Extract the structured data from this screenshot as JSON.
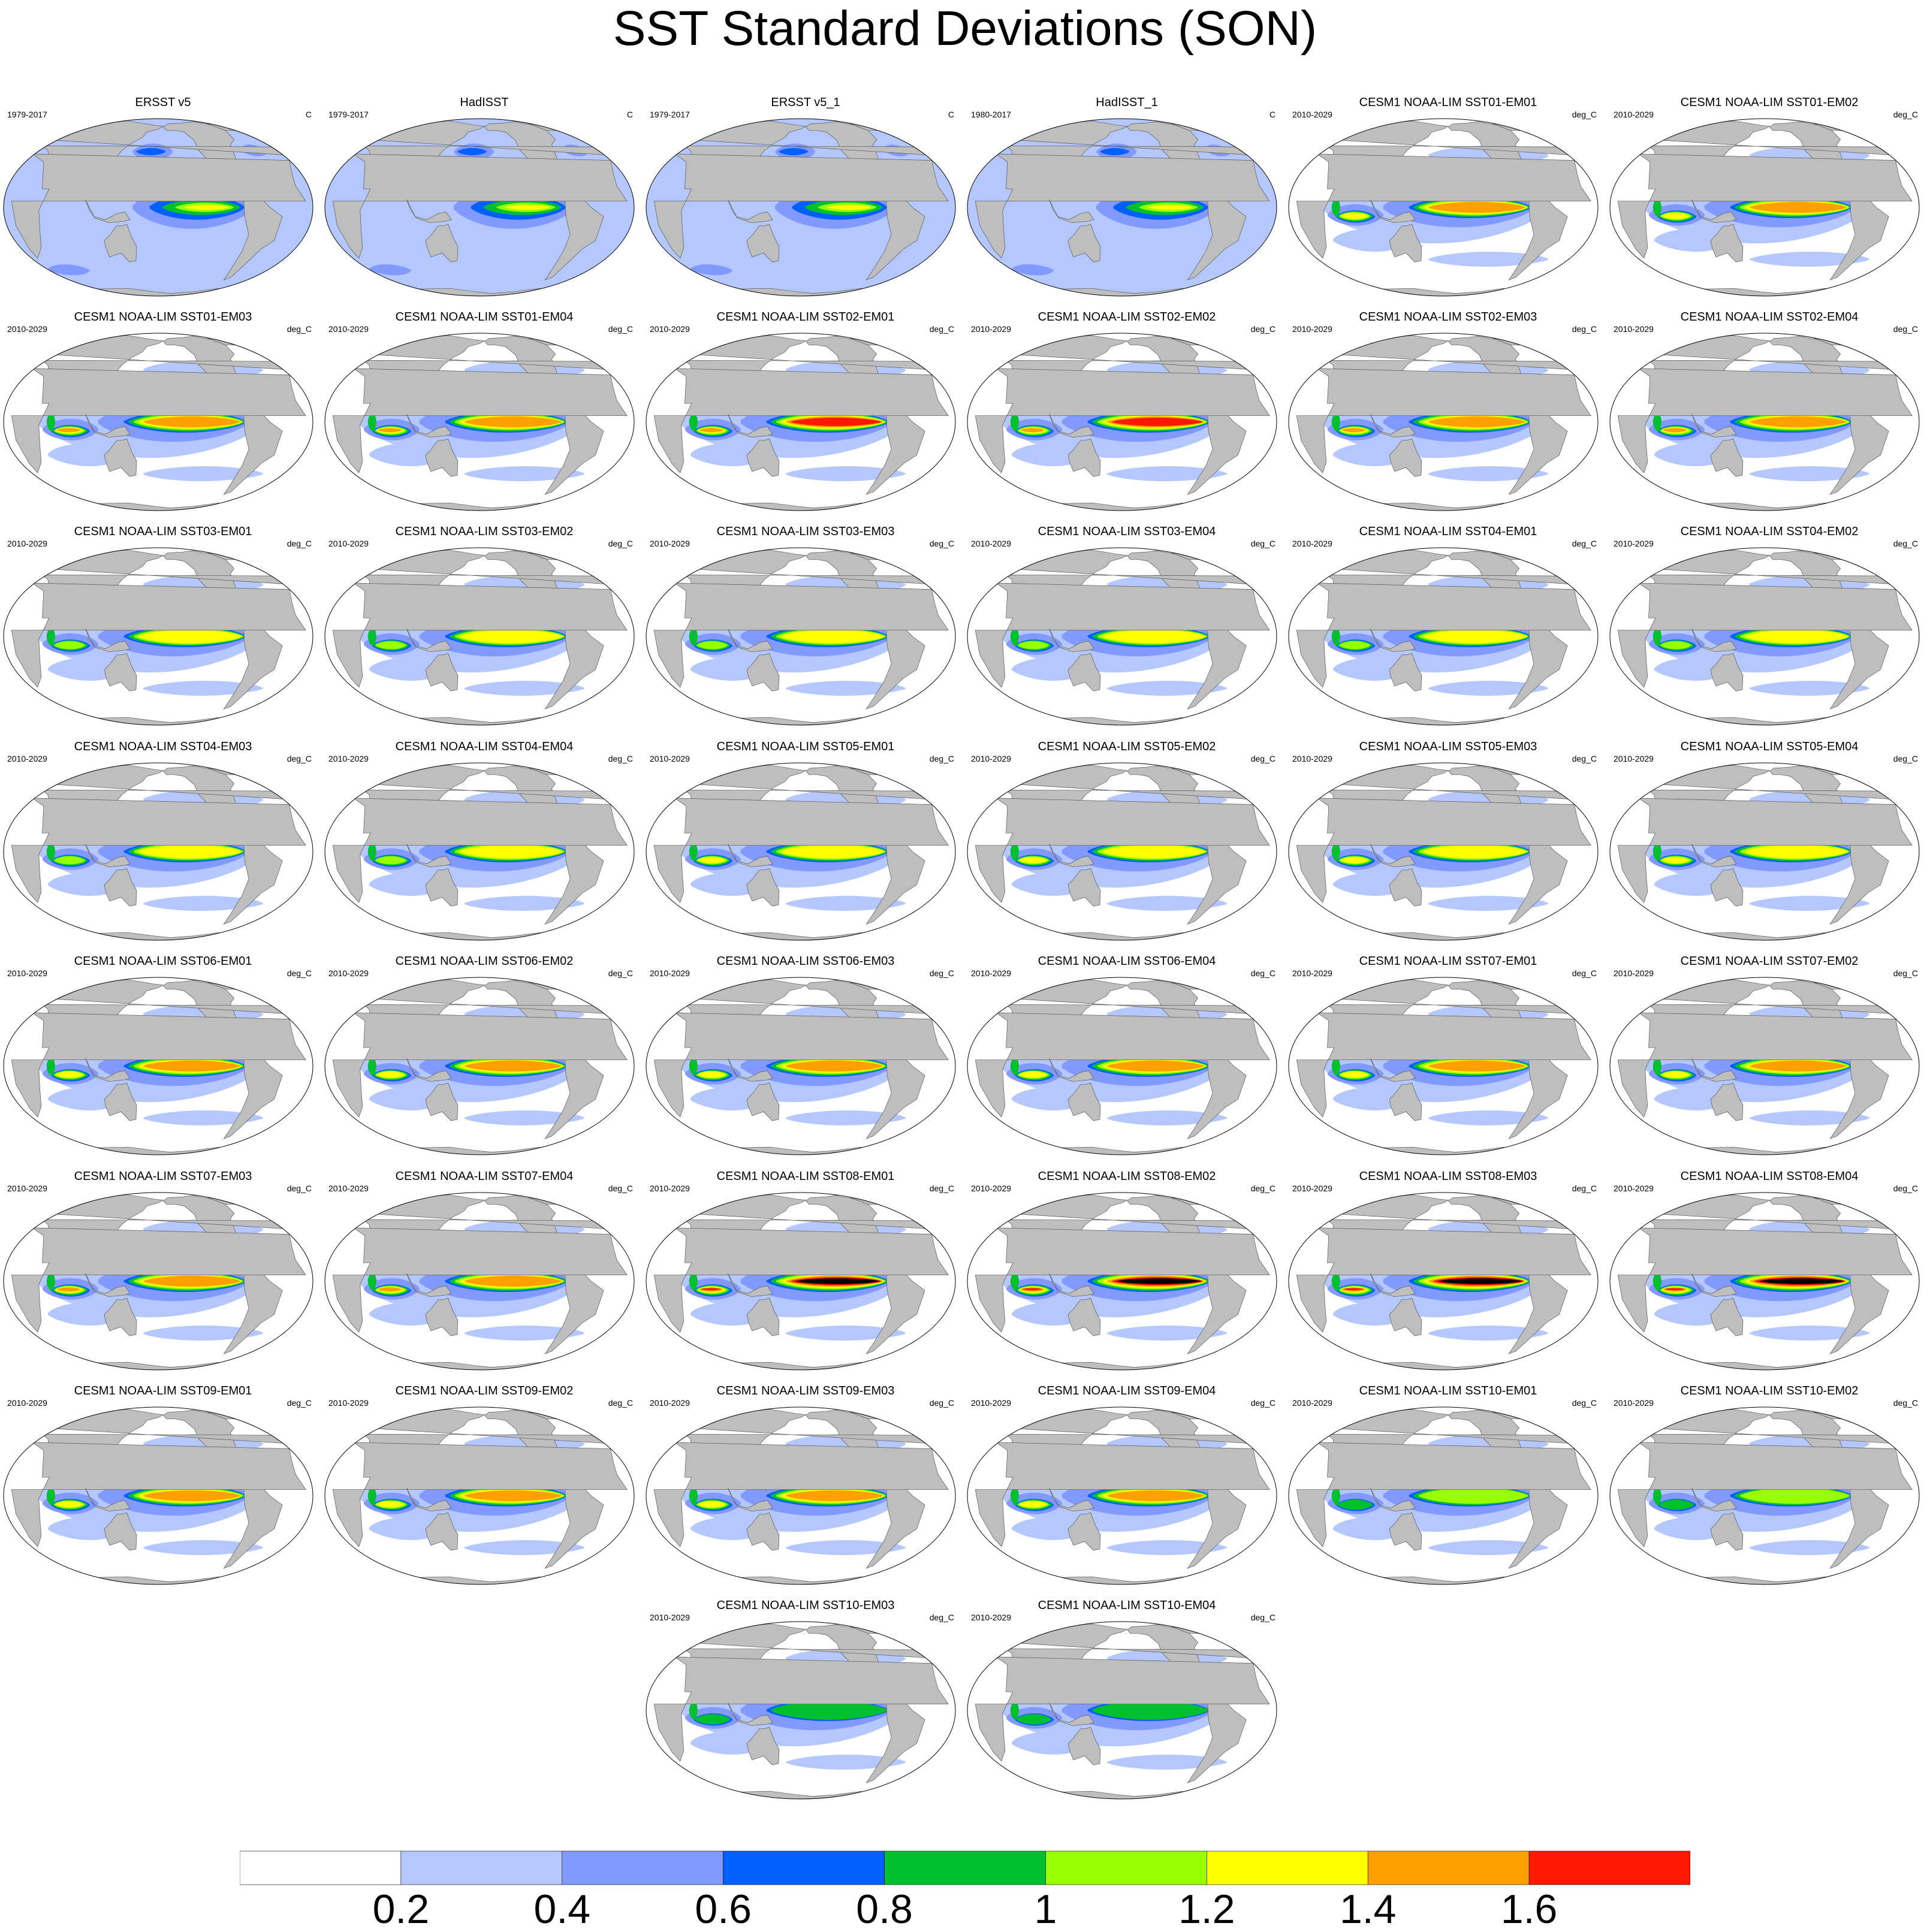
{
  "title": "SST Standard Deviations (SON)",
  "panels": [
    {
      "title": "ERSST v5",
      "period": "1979-2017",
      "units": "C",
      "kind": "obs",
      "intensity": 0.55
    },
    {
      "title": "HadISST",
      "period": "1979-2017",
      "units": "C",
      "kind": "obs",
      "intensity": 0.55
    },
    {
      "title": "ERSST v5_1",
      "period": "1979-2017",
      "units": "C",
      "kind": "obs",
      "intensity": 0.55
    },
    {
      "title": "HadISST_1",
      "period": "1980-2017",
      "units": "C",
      "kind": "obs",
      "intensity": 0.5
    },
    {
      "title": "CESM1 NOAA-LIM SST01-EM01",
      "period": "2010-2029",
      "units": "deg_C",
      "kind": "model",
      "intensity": 0.7
    },
    {
      "title": "CESM1 NOAA-LIM SST01-EM02",
      "period": "2010-2029",
      "units": "deg_C",
      "kind": "model",
      "intensity": 0.7
    },
    {
      "title": "CESM1 NOAA-LIM SST01-EM03",
      "period": "2010-2029",
      "units": "deg_C",
      "kind": "model",
      "intensity": 0.75
    },
    {
      "title": "CESM1 NOAA-LIM SST01-EM04",
      "period": "2010-2029",
      "units": "deg_C",
      "kind": "model",
      "intensity": 0.75
    },
    {
      "title": "CESM1 NOAA-LIM SST02-EM01",
      "period": "2010-2029",
      "units": "deg_C",
      "kind": "model",
      "intensity": 0.8
    },
    {
      "title": "CESM1 NOAA-LIM SST02-EM02",
      "period": "2010-2029",
      "units": "deg_C",
      "kind": "model",
      "intensity": 0.8
    },
    {
      "title": "CESM1 NOAA-LIM SST02-EM03",
      "period": "2010-2029",
      "units": "deg_C",
      "kind": "model",
      "intensity": 0.75
    },
    {
      "title": "CESM1 NOAA-LIM SST02-EM04",
      "period": "2010-2029",
      "units": "deg_C",
      "kind": "model",
      "intensity": 0.75
    },
    {
      "title": "CESM1 NOAA-LIM SST03-EM01",
      "period": "2010-2029",
      "units": "deg_C",
      "kind": "model",
      "intensity": 0.55
    },
    {
      "title": "CESM1 NOAA-LIM SST03-EM02",
      "period": "2010-2029",
      "units": "deg_C",
      "kind": "model",
      "intensity": 0.55
    },
    {
      "title": "CESM1 NOAA-LIM SST03-EM03",
      "period": "2010-2029",
      "units": "deg_C",
      "kind": "model",
      "intensity": 0.55
    },
    {
      "title": "CESM1 NOAA-LIM SST03-EM04",
      "period": "2010-2029",
      "units": "deg_C",
      "kind": "model",
      "intensity": 0.55
    },
    {
      "title": "CESM1 NOAA-LIM SST04-EM01",
      "period": "2010-2029",
      "units": "deg_C",
      "kind": "model",
      "intensity": 0.55
    },
    {
      "title": "CESM1 NOAA-LIM SST04-EM02",
      "period": "2010-2029",
      "units": "deg_C",
      "kind": "model",
      "intensity": 0.55
    },
    {
      "title": "CESM1 NOAA-LIM SST04-EM03",
      "period": "2010-2029",
      "units": "deg_C",
      "kind": "model",
      "intensity": 0.55
    },
    {
      "title": "CESM1 NOAA-LIM SST04-EM04",
      "period": "2010-2029",
      "units": "deg_C",
      "kind": "model",
      "intensity": 0.55
    },
    {
      "title": "CESM1 NOAA-LIM SST05-EM01",
      "period": "2010-2029",
      "units": "deg_C",
      "kind": "model",
      "intensity": 0.6
    },
    {
      "title": "CESM1 NOAA-LIM SST05-EM02",
      "period": "2010-2029",
      "units": "deg_C",
      "kind": "model",
      "intensity": 0.6
    },
    {
      "title": "CESM1 NOAA-LIM SST05-EM03",
      "period": "2010-2029",
      "units": "deg_C",
      "kind": "model",
      "intensity": 0.6
    },
    {
      "title": "CESM1 NOAA-LIM SST05-EM04",
      "period": "2010-2029",
      "units": "deg_C",
      "kind": "model",
      "intensity": 0.6
    },
    {
      "title": "CESM1 NOAA-LIM SST06-EM01",
      "period": "2010-2029",
      "units": "deg_C",
      "kind": "model",
      "intensity": 0.65
    },
    {
      "title": "CESM1 NOAA-LIM SST06-EM02",
      "period": "2010-2029",
      "units": "deg_C",
      "kind": "model",
      "intensity": 0.65
    },
    {
      "title": "CESM1 NOAA-LIM SST06-EM03",
      "period": "2010-2029",
      "units": "deg_C",
      "kind": "model",
      "intensity": 0.65
    },
    {
      "title": "CESM1 NOAA-LIM SST06-EM04",
      "period": "2010-2029",
      "units": "deg_C",
      "kind": "model",
      "intensity": 0.65
    },
    {
      "title": "CESM1 NOAA-LIM SST07-EM01",
      "period": "2010-2029",
      "units": "deg_C",
      "kind": "model",
      "intensity": 0.7
    },
    {
      "title": "CESM1 NOAA-LIM SST07-EM02",
      "period": "2010-2029",
      "units": "deg_C",
      "kind": "model",
      "intensity": 0.7
    },
    {
      "title": "CESM1 NOAA-LIM SST07-EM03",
      "period": "2010-2029",
      "units": "deg_C",
      "kind": "model",
      "intensity": 0.75
    },
    {
      "title": "CESM1 NOAA-LIM SST07-EM04",
      "period": "2010-2029",
      "units": "deg_C",
      "kind": "model",
      "intensity": 0.75
    },
    {
      "title": "CESM1 NOAA-LIM SST08-EM01",
      "period": "2010-2029",
      "units": "deg_C",
      "kind": "model",
      "intensity": 1.0
    },
    {
      "title": "CESM1 NOAA-LIM SST08-EM02",
      "period": "2010-2029",
      "units": "deg_C",
      "kind": "model",
      "intensity": 1.0
    },
    {
      "title": "CESM1 NOAA-LIM SST08-EM03",
      "period": "2010-2029",
      "units": "deg_C",
      "kind": "model",
      "intensity": 1.0
    },
    {
      "title": "CESM1 NOAA-LIM SST08-EM04",
      "period": "2010-2029",
      "units": "deg_C",
      "kind": "model",
      "intensity": 1.0
    },
    {
      "title": "CESM1 NOAA-LIM SST09-EM01",
      "period": "2010-2029",
      "units": "deg_C",
      "kind": "model",
      "intensity": 0.7
    },
    {
      "title": "CESM1 NOAA-LIM SST09-EM02",
      "period": "2010-2029",
      "units": "deg_C",
      "kind": "model",
      "intensity": 0.7
    },
    {
      "title": "CESM1 NOAA-LIM SST09-EM03",
      "period": "2010-2029",
      "units": "deg_C",
      "kind": "model",
      "intensity": 0.7
    },
    {
      "title": "CESM1 NOAA-LIM SST09-EM04",
      "period": "2010-2029",
      "units": "deg_C",
      "kind": "model",
      "intensity": 0.7
    },
    {
      "title": "CESM1 NOAA-LIM SST10-EM01",
      "period": "2010-2029",
      "units": "deg_C",
      "kind": "model",
      "intensity": 0.4
    },
    {
      "title": "CESM1 NOAA-LIM SST10-EM02",
      "period": "2010-2029",
      "units": "deg_C",
      "kind": "model",
      "intensity": 0.4
    },
    {
      "title": "CESM1 NOAA-LIM SST10-EM03",
      "period": "2010-2029",
      "units": "deg_C",
      "kind": "model",
      "intensity": 0.35
    },
    {
      "title": "CESM1 NOAA-LIM SST10-EM04",
      "period": "2010-2029",
      "units": "deg_C",
      "kind": "model",
      "intensity": 0.35
    }
  ],
  "colorbar": {
    "labels": [
      "0.2",
      "0.4",
      "0.6",
      "0.8",
      "1",
      "1.2",
      "1.4",
      "1.6"
    ],
    "colors": [
      "#ffffff",
      "#b4c8ff",
      "#8299ff",
      "#0060ff",
      "#00c030",
      "#98ff00",
      "#ffff00",
      "#ffa000",
      "#ff1800"
    ]
  },
  "land_color": "#bebebe"
}
